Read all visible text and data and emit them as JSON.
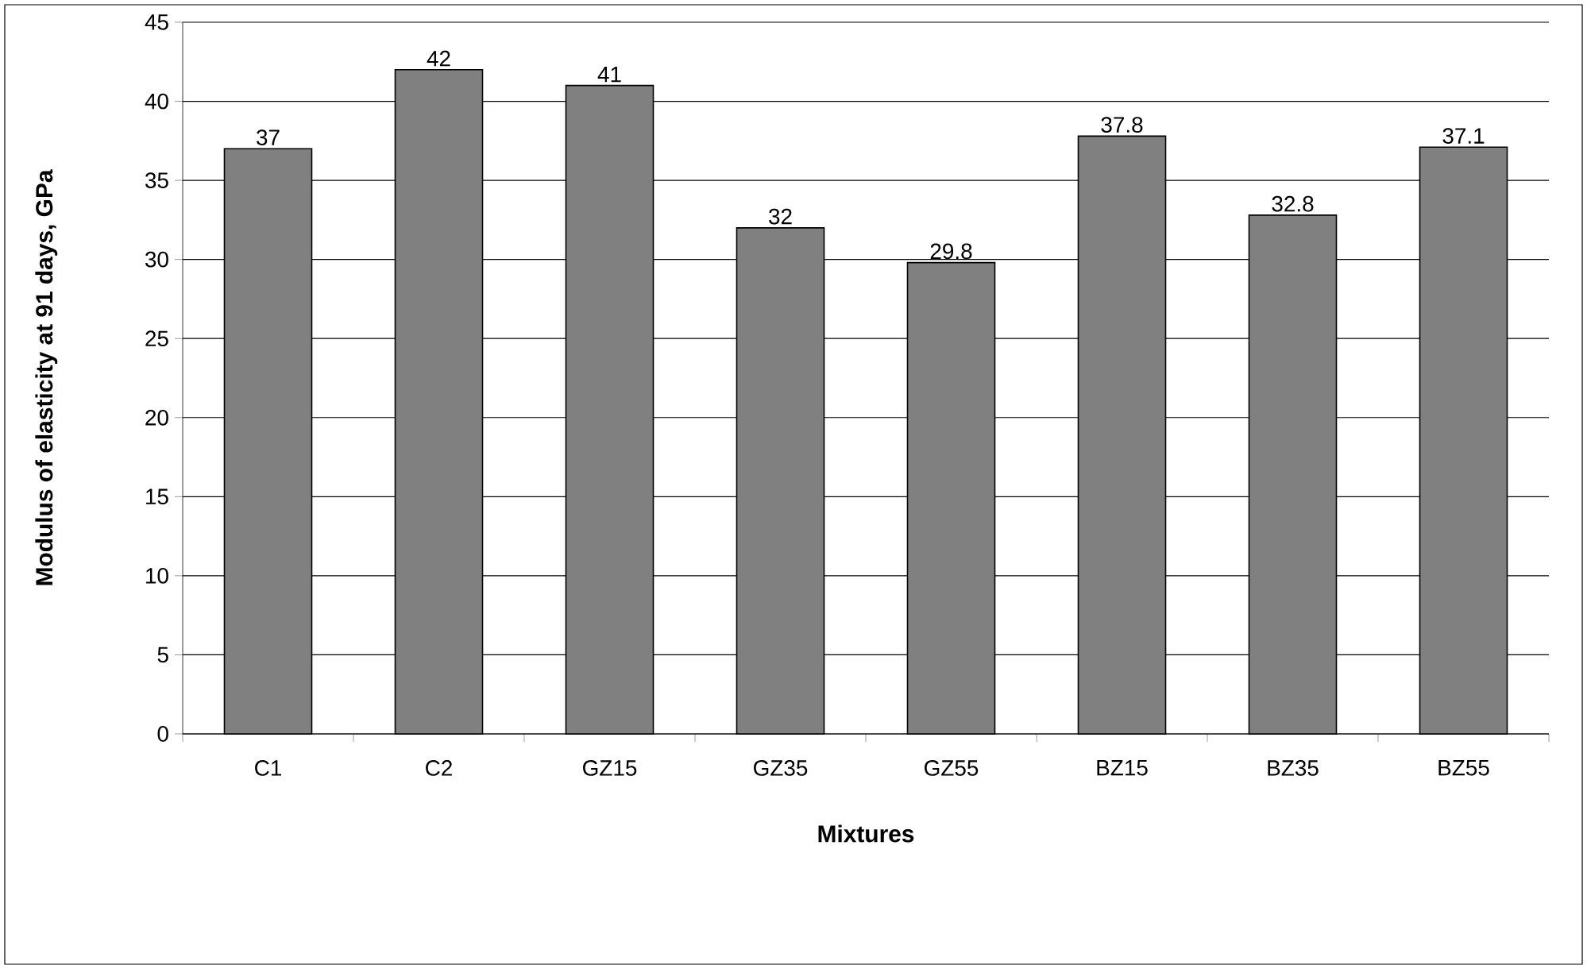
{
  "chart_data": {
    "type": "bar",
    "xlabel": "Mixtures",
    "ylabel": "Modulus of elasticity at 91 days, GPa",
    "categories": [
      "C1",
      "C2",
      "GZ15",
      "GZ35",
      "GZ55",
      "BZ15",
      "BZ35",
      "BZ55"
    ],
    "values": [
      37,
      42,
      41,
      32,
      29.8,
      37.8,
      32.8,
      37.1
    ],
    "value_labels": [
      "37",
      "42",
      "41",
      "32",
      "29.8",
      "37.8",
      "32.8",
      "37.1"
    ],
    "color": "#808080",
    "ylim": [
      0,
      45
    ],
    "yticks": [
      0,
      5,
      10,
      15,
      20,
      25,
      30,
      35,
      40,
      45
    ],
    "grid": "y"
  }
}
